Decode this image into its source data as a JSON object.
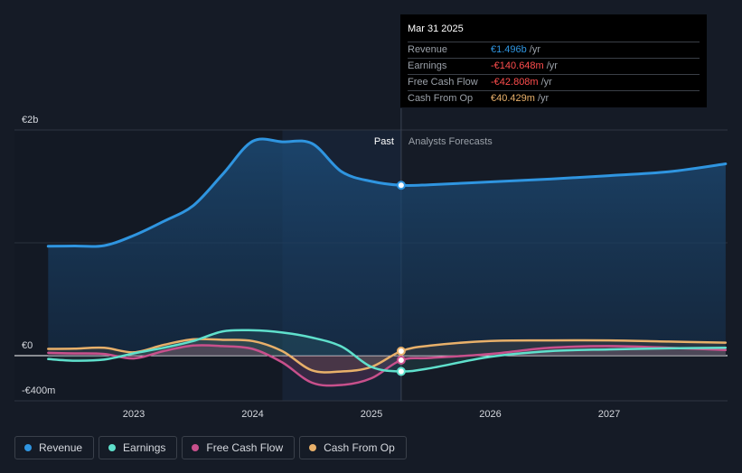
{
  "chart_data": {
    "type": "area",
    "title": "",
    "y_ticks": [
      {
        "value": 2000,
        "label": "€2b"
      },
      {
        "value": 0,
        "label": "€0"
      },
      {
        "value": -400,
        "label": "-€400m"
      }
    ],
    "ylim": [
      -400,
      2000
    ],
    "x_ticks": [
      "2023",
      "2024",
      "2025",
      "2026",
      "2027"
    ],
    "xlim": [
      2022.25,
      2028.0
    ],
    "past_label": "Past",
    "forecast_label": "Analysts Forecasts",
    "divider_x": 2025.25,
    "series": [
      {
        "name": "Revenue",
        "color": "#2f95e0",
        "points": [
          [
            2022.28,
            970
          ],
          [
            2022.5,
            972
          ],
          [
            2022.75,
            975
          ],
          [
            2023.0,
            1065
          ],
          [
            2023.25,
            1190
          ],
          [
            2023.5,
            1330
          ],
          [
            2023.75,
            1610
          ],
          [
            2024.0,
            1900
          ],
          [
            2024.25,
            1895
          ],
          [
            2024.5,
            1880
          ],
          [
            2024.75,
            1630
          ],
          [
            2025.0,
            1545
          ],
          [
            2025.25,
            1510
          ],
          [
            2025.5,
            1515
          ],
          [
            2026.0,
            1540
          ],
          [
            2026.5,
            1565
          ],
          [
            2027.0,
            1595
          ],
          [
            2027.5,
            1630
          ],
          [
            2027.98,
            1700
          ]
        ]
      },
      {
        "name": "Earnings",
        "color": "#5fe0cc",
        "points": [
          [
            2022.28,
            -30
          ],
          [
            2022.5,
            -45
          ],
          [
            2022.75,
            -35
          ],
          [
            2023.0,
            20
          ],
          [
            2023.25,
            70
          ],
          [
            2023.5,
            130
          ],
          [
            2023.75,
            215
          ],
          [
            2024.0,
            225
          ],
          [
            2024.25,
            205
          ],
          [
            2024.5,
            160
          ],
          [
            2024.75,
            80
          ],
          [
            2025.0,
            -100
          ],
          [
            2025.25,
            -140
          ],
          [
            2025.5,
            -110
          ],
          [
            2026.0,
            -10
          ],
          [
            2026.5,
            40
          ],
          [
            2027.0,
            55
          ],
          [
            2027.5,
            65
          ],
          [
            2027.98,
            70
          ]
        ]
      },
      {
        "name": "Free Cash Flow",
        "color": "#c8508c",
        "points": [
          [
            2022.28,
            25
          ],
          [
            2022.5,
            20
          ],
          [
            2022.75,
            15
          ],
          [
            2023.0,
            -25
          ],
          [
            2023.25,
            40
          ],
          [
            2023.5,
            90
          ],
          [
            2023.75,
            85
          ],
          [
            2024.0,
            60
          ],
          [
            2024.25,
            -60
          ],
          [
            2024.5,
            -240
          ],
          [
            2024.75,
            -260
          ],
          [
            2025.0,
            -200
          ],
          [
            2025.25,
            -40
          ],
          [
            2025.5,
            -20
          ],
          [
            2026.0,
            15
          ],
          [
            2026.5,
            70
          ],
          [
            2027.0,
            85
          ],
          [
            2027.5,
            70
          ],
          [
            2027.98,
            50
          ]
        ]
      },
      {
        "name": "Cash From Op",
        "color": "#e8b06a",
        "points": [
          [
            2022.28,
            60
          ],
          [
            2022.5,
            62
          ],
          [
            2022.75,
            70
          ],
          [
            2023.0,
            30
          ],
          [
            2023.25,
            95
          ],
          [
            2023.5,
            145
          ],
          [
            2023.75,
            140
          ],
          [
            2024.0,
            130
          ],
          [
            2024.25,
            40
          ],
          [
            2024.5,
            -130
          ],
          [
            2024.75,
            -140
          ],
          [
            2025.0,
            -100
          ],
          [
            2025.25,
            40
          ],
          [
            2025.5,
            90
          ],
          [
            2026.0,
            130
          ],
          [
            2026.5,
            135
          ],
          [
            2027.0,
            135
          ],
          [
            2027.5,
            125
          ],
          [
            2027.98,
            115
          ]
        ]
      }
    ]
  },
  "tooltip": {
    "date": "Mar 31 2025",
    "rows": [
      {
        "label": "Revenue",
        "value": "€1.496b",
        "unit": "/yr",
        "color": "#2f95e0"
      },
      {
        "label": "Earnings",
        "value": "-€140.648m",
        "unit": "/yr",
        "color": "#ff4d4d"
      },
      {
        "label": "Free Cash Flow",
        "value": "-€42.808m",
        "unit": "/yr",
        "color": "#ff4d4d"
      },
      {
        "label": "Cash From Op",
        "value": "€40.429m",
        "unit": "/yr",
        "color": "#e8b06a"
      }
    ]
  },
  "legend": [
    {
      "label": "Revenue",
      "color": "#2f95e0"
    },
    {
      "label": "Earnings",
      "color": "#5fe0cc"
    },
    {
      "label": "Free Cash Flow",
      "color": "#c8508c"
    },
    {
      "label": "Cash From Op",
      "color": "#e8b06a"
    }
  ]
}
